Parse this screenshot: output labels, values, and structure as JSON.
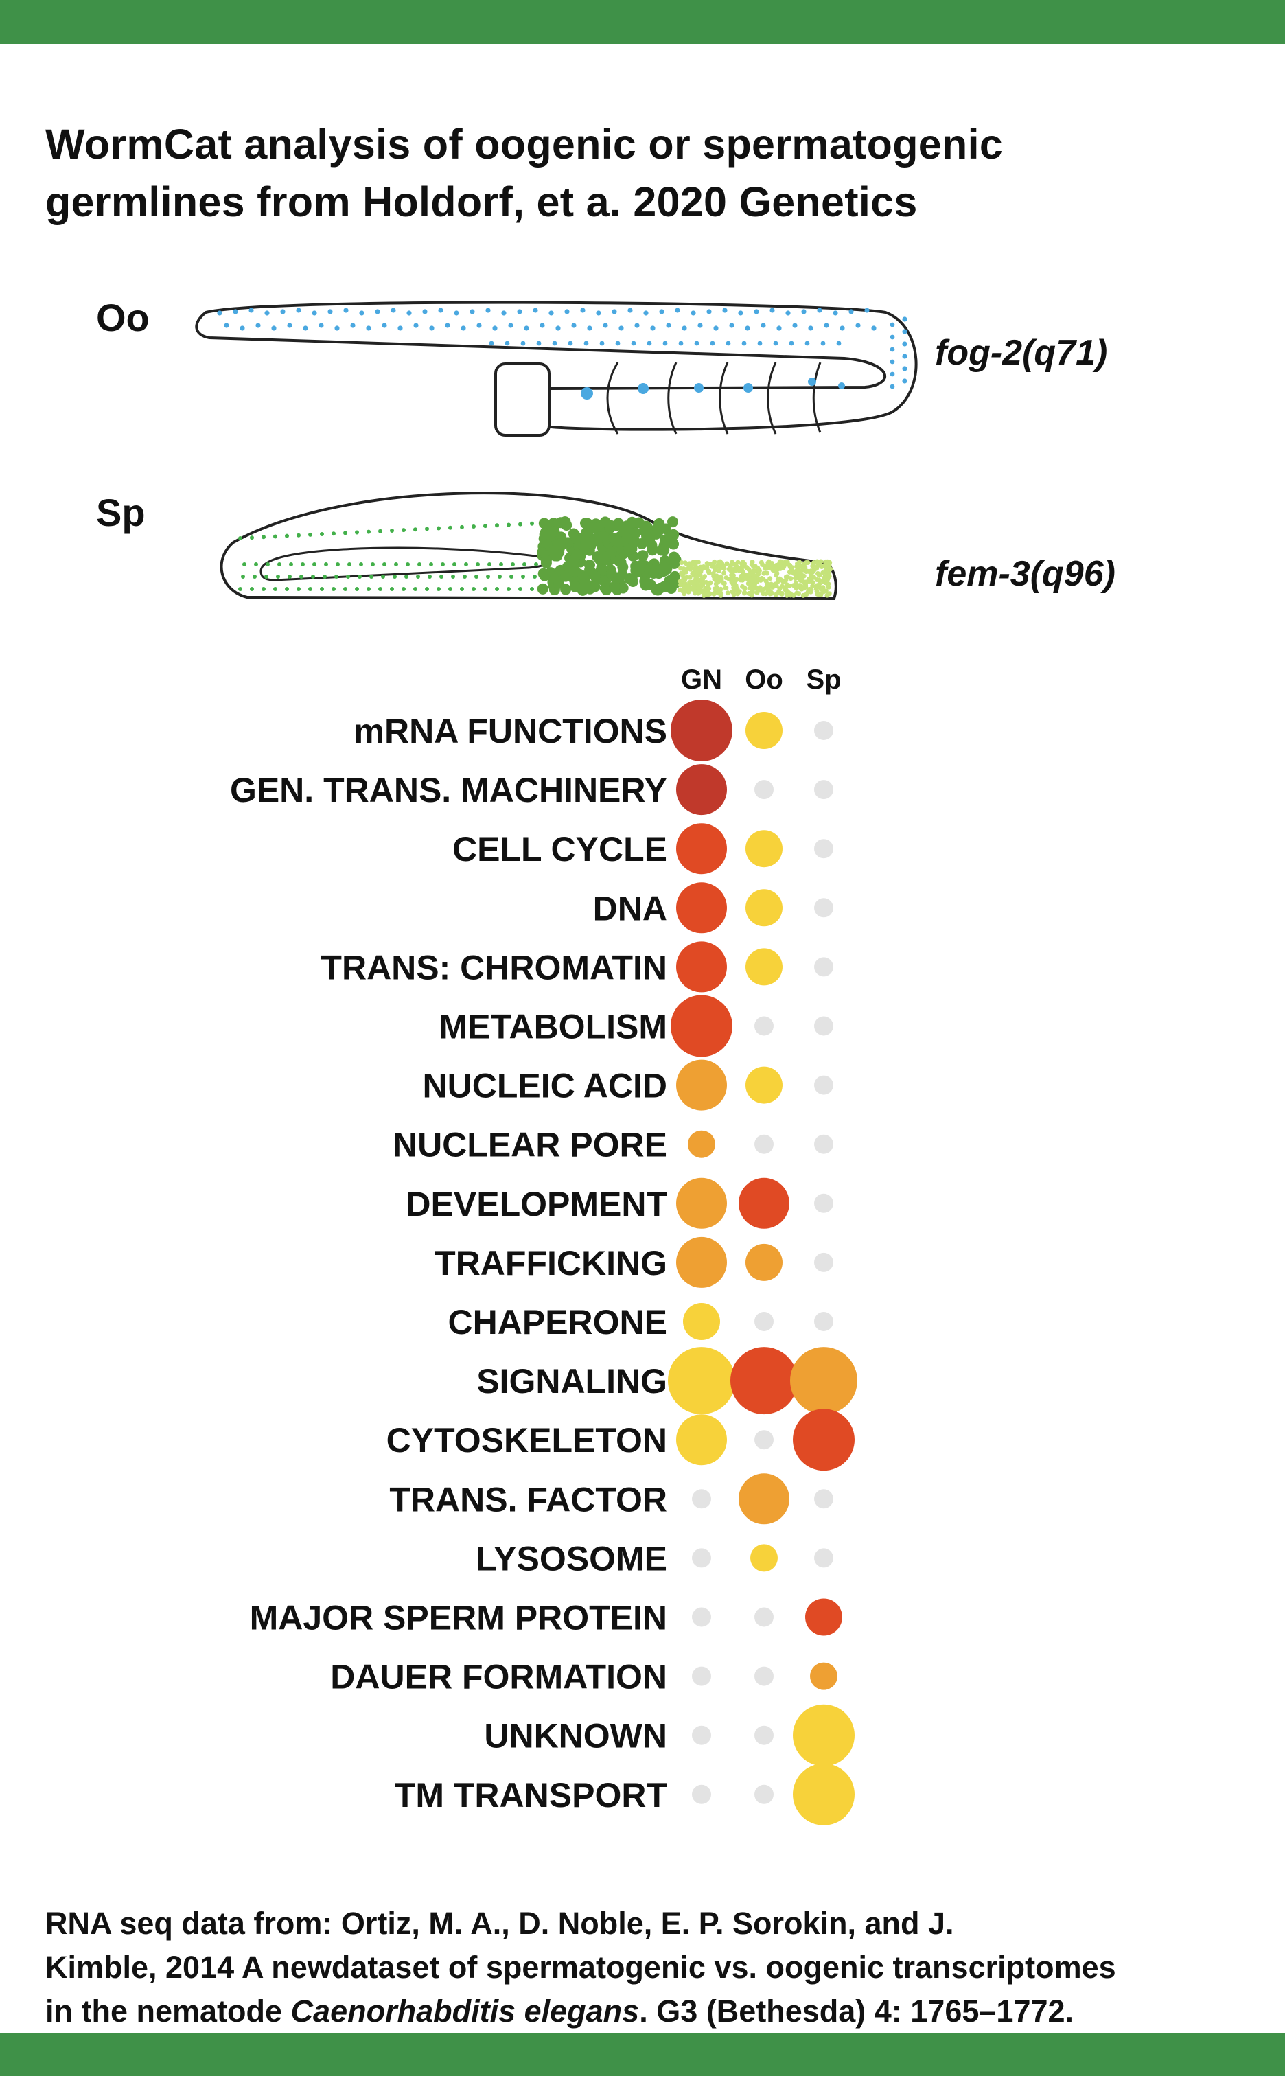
{
  "title": {
    "line1": "WormCat analysis of oogenic or spermatogenic",
    "line2": "germlines from Holdorf, et a. 2020 Genetics"
  },
  "illustration": {
    "oo_label": "Oo",
    "oo_genotype": "fog-2(q71)",
    "sp_label": "Sp",
    "sp_genotype": "fem-3(q96)"
  },
  "colors": {
    "band": "#3f9148",
    "dark_red": "#c0392b",
    "red": "#e04a24",
    "orange": "#eea033",
    "yellow": "#f7d23a",
    "grey": "#e3e3e3",
    "oocyte_dots": "#4aa8e0",
    "sperm_dark": "#5fa33e",
    "sperm_light": "#c5e37a",
    "sperm_outline_dots": "#43b04a"
  },
  "chart_data": {
    "type": "bubble",
    "columns": [
      "GN",
      "Oo",
      "Sp"
    ],
    "categories": [
      "mRNA FUNCTIONS",
      "GEN. TRANS. MACHINERY",
      "CELL CYCLE",
      "DNA",
      "TRANS: CHROMATIN",
      "METABOLISM",
      "NUCLEIC ACID",
      "NUCLEAR PORE",
      "DEVELOPMENT",
      "TRAFFICKING",
      "CHAPERONE",
      "SIGNALING",
      "CYTOSKELETON",
      "TRANS. FACTOR",
      "LYSOSOME",
      "MAJOR SPERM PROTEIN",
      "DAUER FORMATION",
      "UNKNOWN",
      "TM TRANSPORT"
    ],
    "cells": [
      [
        {
          "size": "l",
          "color": "dark_red"
        },
        {
          "size": "s",
          "color": "yellow"
        },
        {
          "size": "n",
          "color": "grey"
        }
      ],
      [
        {
          "size": "m",
          "color": "dark_red"
        },
        {
          "size": "n",
          "color": "grey"
        },
        {
          "size": "n",
          "color": "grey"
        }
      ],
      [
        {
          "size": "m",
          "color": "red"
        },
        {
          "size": "s",
          "color": "yellow"
        },
        {
          "size": "n",
          "color": "grey"
        }
      ],
      [
        {
          "size": "m",
          "color": "red"
        },
        {
          "size": "s",
          "color": "yellow"
        },
        {
          "size": "n",
          "color": "grey"
        }
      ],
      [
        {
          "size": "m",
          "color": "red"
        },
        {
          "size": "s",
          "color": "yellow"
        },
        {
          "size": "n",
          "color": "grey"
        }
      ],
      [
        {
          "size": "l",
          "color": "red"
        },
        {
          "size": "n",
          "color": "grey"
        },
        {
          "size": "n",
          "color": "grey"
        }
      ],
      [
        {
          "size": "m",
          "color": "orange"
        },
        {
          "size": "s",
          "color": "yellow"
        },
        {
          "size": "n",
          "color": "grey"
        }
      ],
      [
        {
          "size": "xs",
          "color": "orange"
        },
        {
          "size": "n",
          "color": "grey"
        },
        {
          "size": "n",
          "color": "grey"
        }
      ],
      [
        {
          "size": "m",
          "color": "orange"
        },
        {
          "size": "m",
          "color": "red"
        },
        {
          "size": "n",
          "color": "grey"
        }
      ],
      [
        {
          "size": "m",
          "color": "orange"
        },
        {
          "size": "s",
          "color": "orange"
        },
        {
          "size": "n",
          "color": "grey"
        }
      ],
      [
        {
          "size": "s",
          "color": "yellow"
        },
        {
          "size": "n",
          "color": "grey"
        },
        {
          "size": "n",
          "color": "grey"
        }
      ],
      [
        {
          "size": "xl",
          "color": "yellow"
        },
        {
          "size": "xl",
          "color": "red"
        },
        {
          "size": "xl",
          "color": "orange"
        }
      ],
      [
        {
          "size": "m",
          "color": "yellow"
        },
        {
          "size": "n",
          "color": "grey"
        },
        {
          "size": "l",
          "color": "red"
        }
      ],
      [
        {
          "size": "n",
          "color": "grey"
        },
        {
          "size": "m",
          "color": "orange"
        },
        {
          "size": "n",
          "color": "grey"
        }
      ],
      [
        {
          "size": "n",
          "color": "grey"
        },
        {
          "size": "xs",
          "color": "yellow"
        },
        {
          "size": "n",
          "color": "grey"
        }
      ],
      [
        {
          "size": "n",
          "color": "grey"
        },
        {
          "size": "n",
          "color": "grey"
        },
        {
          "size": "s",
          "color": "red"
        }
      ],
      [
        {
          "size": "n",
          "color": "grey"
        },
        {
          "size": "n",
          "color": "grey"
        },
        {
          "size": "xs",
          "color": "orange"
        }
      ],
      [
        {
          "size": "n",
          "color": "grey"
        },
        {
          "size": "n",
          "color": "grey"
        },
        {
          "size": "l",
          "color": "yellow"
        }
      ],
      [
        {
          "size": "n",
          "color": "grey"
        },
        {
          "size": "n",
          "color": "grey"
        },
        {
          "size": "l",
          "color": "yellow"
        }
      ]
    ]
  },
  "footer": {
    "line1": "RNA seq data from: Ortiz, M. A., D. Noble, E. P. Sorokin, and J.",
    "line2": "Kimble, 2014 A newdataset of spermatogenic vs. oogenic transcriptomes",
    "line3_pre": "in the nematode ",
    "line3_species": "Caenorhabditis elegans",
    "line3_post": ". G3 (Bethesda) 4: 1765–1772."
  }
}
